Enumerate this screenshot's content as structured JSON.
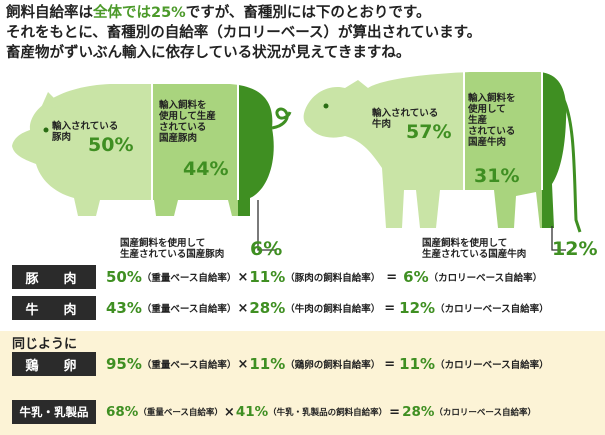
{
  "intro": {
    "line1_a": "飼料自給率は",
    "line1_hl": "全体では25%",
    "line1_b": "ですが、畜種別には下のとおりです。",
    "line2": "それをもとに、畜種別の自給率（カロリーベース）が算出されています。",
    "line3": "畜産物がずいぶん輸入に依存している状況が見えてきますね。"
  },
  "pig": {
    "import_label": "輸入されている\n豚肉",
    "import_pct": "50%",
    "feed_label": "輸入飼料を\n使用して生産\nされている\n国産豚肉",
    "feed_pct": "44%",
    "domestic_label": "国産飼料を使用して\n生産されている国産豚肉",
    "domestic_pct": "6%"
  },
  "cow": {
    "import_label": "輸入されている\n牛肉",
    "import_pct": "57%",
    "feed_label": "輸入飼料を\n使用して\n生産\nされている\n国産牛肉",
    "feed_pct": "31%",
    "domestic_label": "国産飼料を使用して\n生産されている国産牛肉",
    "domestic_pct": "12%"
  },
  "colors": {
    "light_green": "#c9e4a6",
    "mid_green": "#a9d47e",
    "dark_green": "#3f8f22",
    "box": "#2b2b2b",
    "panel": "#fcf3d6"
  },
  "same_label": "同じように",
  "rows": [
    {
      "name": "豚　肉",
      "v1": "50%",
      "t1": "（重量ベース自給率）",
      "v2": "11%",
      "t2": "（豚肉の飼料自給率）",
      "v3": "6%",
      "t3": "（カロリーベース自給率）"
    },
    {
      "name": "牛　肉",
      "v1": "43%",
      "t1": "（重量ベース自給率）",
      "v2": "28%",
      "t2": "（牛肉の飼料自給率）",
      "v3": "12%",
      "t3": "（カロリーベース自給率）"
    },
    {
      "name": "鶏　卵",
      "v1": "95%",
      "t1": "（重量ベース自給率）",
      "v2": "11%",
      "t2": "（鶏卵の飼料自給率）",
      "v3": "11%",
      "t3": "（カロリーベース自給率）"
    },
    {
      "name": "牛乳・乳製品",
      "v1": "68%",
      "t1": "（重量ベース自給率）",
      "v2": "41%",
      "t2": "（牛乳・乳製品の飼料自給率）",
      "v3": "28%",
      "t3": "（カロリーベース自給率）"
    }
  ],
  "ops": {
    "times": "×",
    "equals": "="
  }
}
